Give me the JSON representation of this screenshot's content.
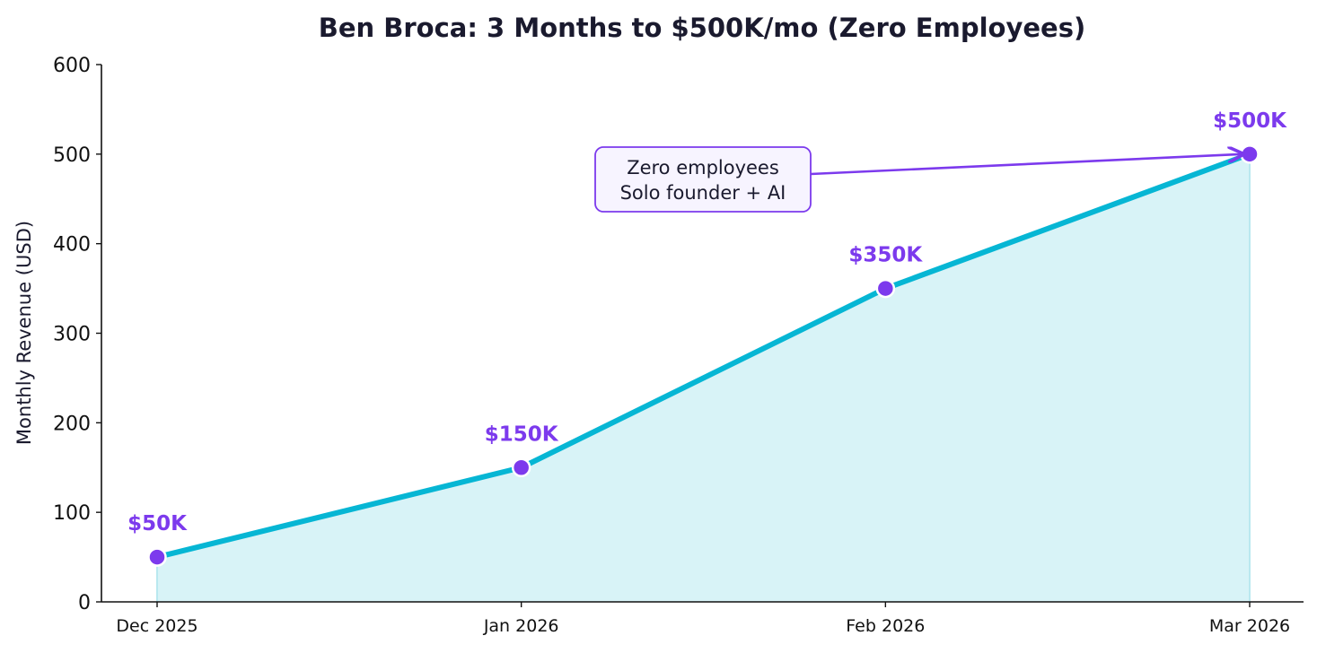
{
  "chart_data": {
    "type": "area",
    "title": "Ben Broca: 3 Months to $500K/mo (Zero Employees)",
    "xlabel": "",
    "ylabel": "Monthly Revenue (USD)",
    "categories": [
      "Dec 2025",
      "Jan 2026",
      "Feb 2026",
      "Mar 2026"
    ],
    "series": [
      {
        "values": [
          50,
          150,
          350,
          500
        ],
        "data_labels": [
          "$50K",
          "$150K",
          "$350K",
          "$500K"
        ]
      }
    ],
    "ylim": [
      0,
      600
    ],
    "yticks": [
      0,
      100,
      200,
      300,
      400,
      500,
      600
    ],
    "grid": false,
    "annotation": {
      "lines": [
        "Zero employees",
        "Solo founder + AI"
      ],
      "target_category": "Mar 2026",
      "target_value": 500
    },
    "colors": {
      "line": "#06b6d4",
      "fill": "#d8f3f7",
      "marker": "#7c3aed",
      "label": "#7c3aed",
      "annotation_border": "#7c3aed",
      "annotation_bg": "#f7f4ff",
      "title": "#1a1a2e"
    }
  }
}
